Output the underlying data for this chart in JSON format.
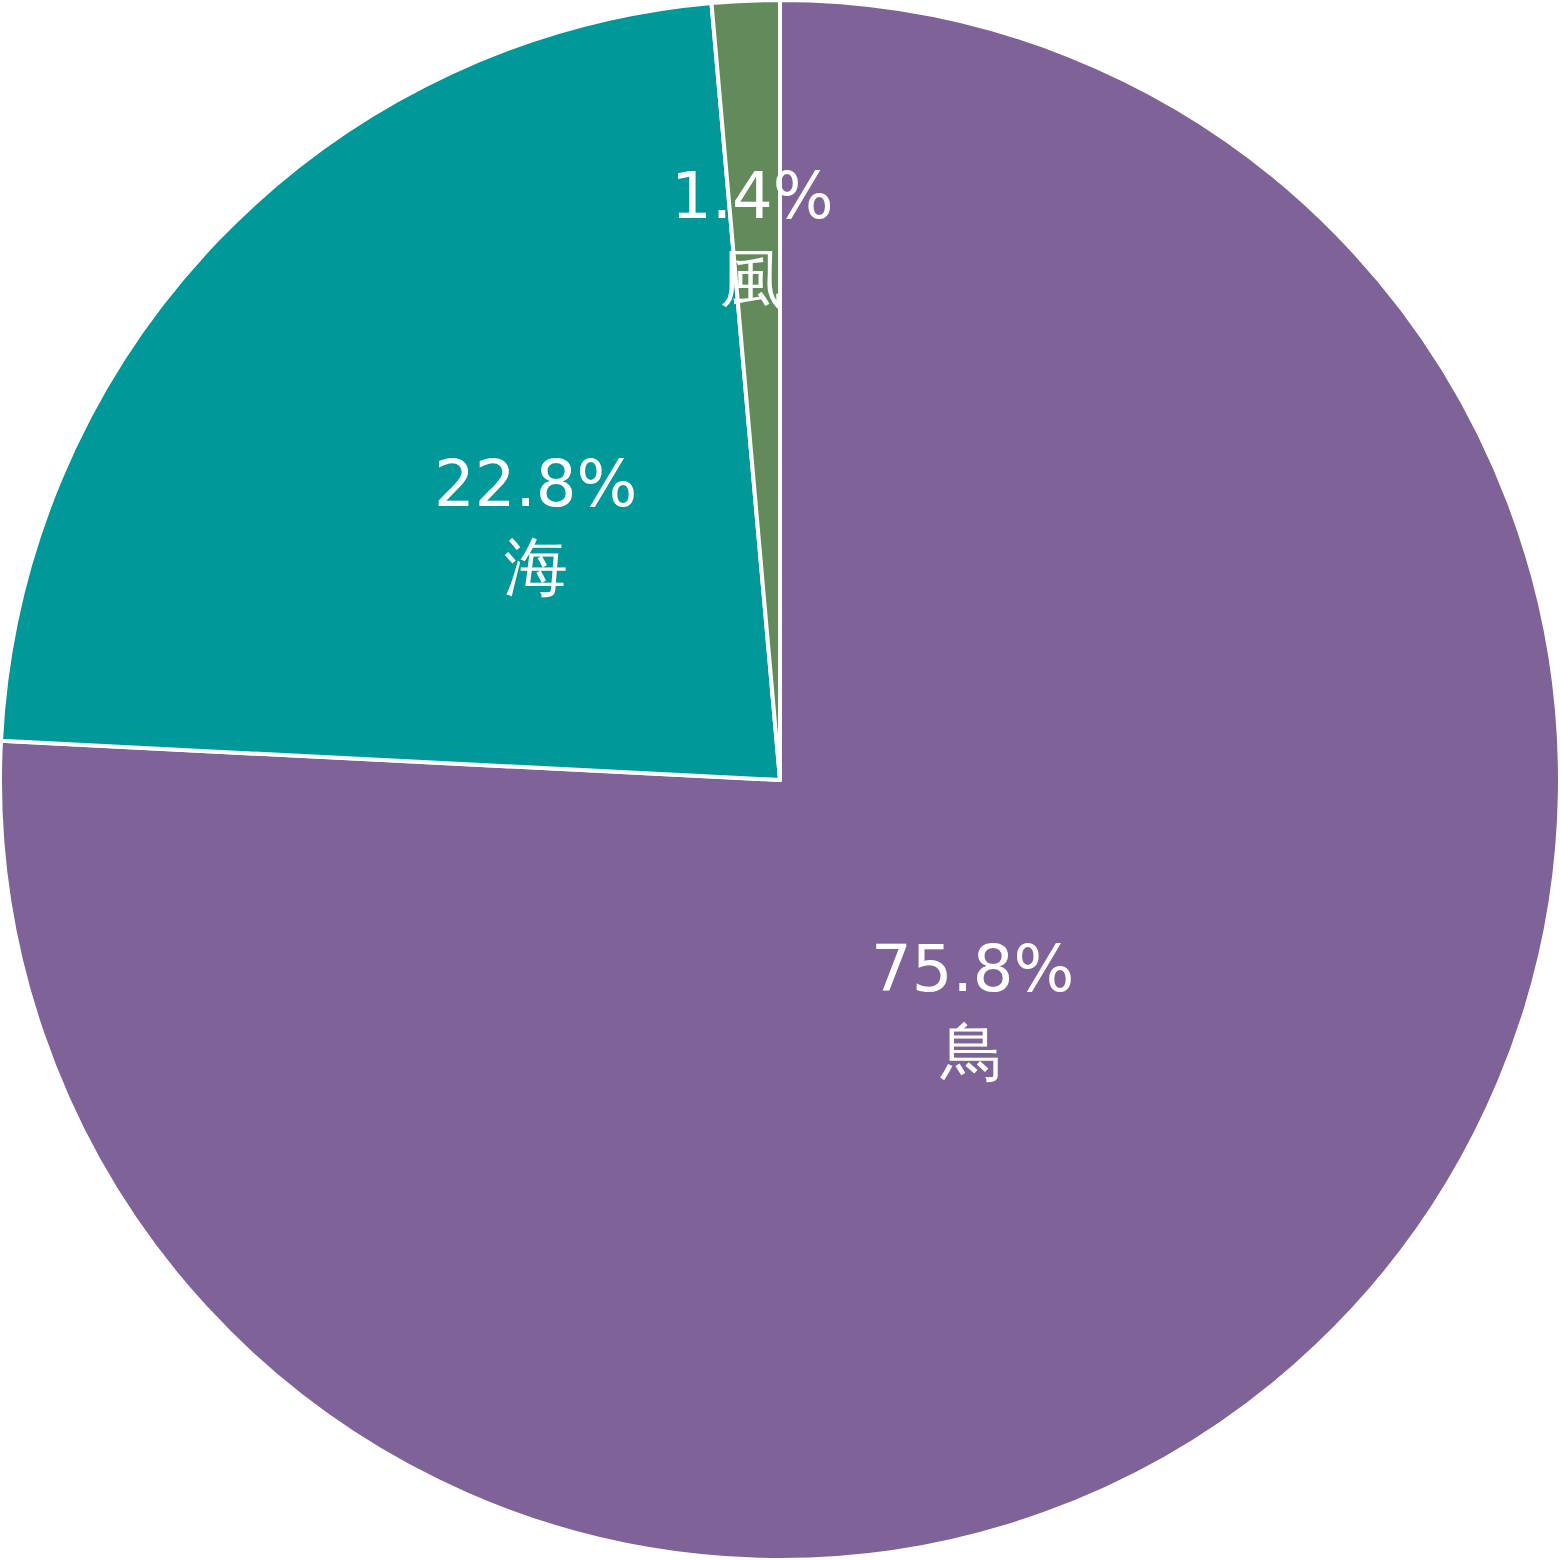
{
  "chart_data": {
    "type": "pie",
    "categories": [
      "鳥",
      "海",
      "風"
    ],
    "values": [
      75.8,
      22.8,
      1.4
    ],
    "value_labels": [
      "75.8%",
      "22.8%",
      "1.4%"
    ],
    "colors": [
      "#7f6398",
      "#009899",
      "#628a5a"
    ],
    "legend": false
  }
}
